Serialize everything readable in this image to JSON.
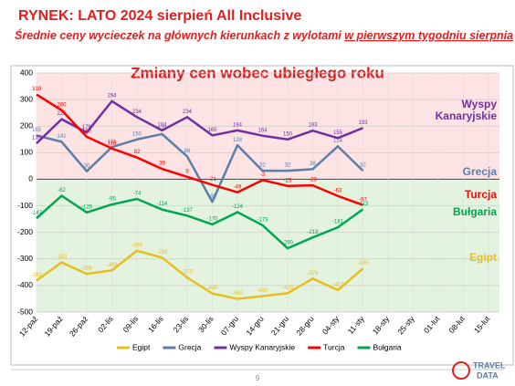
{
  "header": {
    "title": "RYNEK: LATO 2024 sierpień All Inclusive",
    "subtitle_plain": "Średnie ceny wycieczek na głównych kierunkach z wylotami ",
    "subtitle_underlined": "w pierwszym tygodniu sierpnia"
  },
  "chart_data": {
    "type": "line",
    "title": "Zmiany cen wobec ubiegłego roku",
    "categories": [
      "12-paź",
      "19-paź",
      "26-paź",
      "02-lis",
      "09-lis",
      "16-lis",
      "23-lis",
      "30-lis",
      "07-gru",
      "14-gru",
      "21-gru",
      "28-gru",
      "04-sty",
      "11-sty",
      "18-sty",
      "25-sty",
      "01-lut",
      "08-lut",
      "15-lut"
    ],
    "ylim": [
      -500,
      400
    ],
    "yticks": [
      -500,
      -400,
      -300,
      -200,
      -100,
      0,
      100,
      200,
      300,
      400
    ],
    "grid": true,
    "series": [
      {
        "name": "Egipt",
        "color": "#e6bf1e",
        "values": [
          -381,
          -313,
          -356,
          -343,
          -269,
          -295,
          -370,
          -430,
          -450,
          -440,
          -429,
          -374,
          -417,
          -336,
          null,
          null,
          null,
          null,
          null
        ]
      },
      {
        "name": "Grecja",
        "color": "#5b7fa8",
        "values": [
          165,
          141,
          30,
          121,
          150,
          170,
          86,
          -85,
          128,
          32,
          32,
          38,
          124,
          32,
          null,
          null,
          null,
          null,
          null
        ]
      },
      {
        "name": "Wyspy Kanaryjskie",
        "color": "#7030a0",
        "values": [
          135,
          226,
          176,
          294,
          234,
          184,
          234,
          165,
          184,
          164,
          150,
          183,
          155,
          193,
          null,
          null,
          null,
          null,
          null
        ]
      },
      {
        "name": "Turcja",
        "color": "#ff0000",
        "values": [
          319,
          260,
          160,
          116,
          82,
          39,
          9,
          -21,
          -49,
          -3,
          -25,
          -23,
          -63,
          -97,
          null,
          null,
          null,
          null,
          null
        ]
      },
      {
        "name": "Bułgaria",
        "color": "#00a651",
        "values": [
          -147,
          -62,
          -125,
          -95,
          -74,
          -114,
          -137,
          -170,
          -124,
          -173,
          -260,
          -219,
          -181,
          -113,
          null,
          null,
          null,
          null,
          null
        ]
      }
    ]
  },
  "footer": {
    "page": "9",
    "logo_top": "TRAVEL",
    "logo_bottom": "DATA"
  }
}
